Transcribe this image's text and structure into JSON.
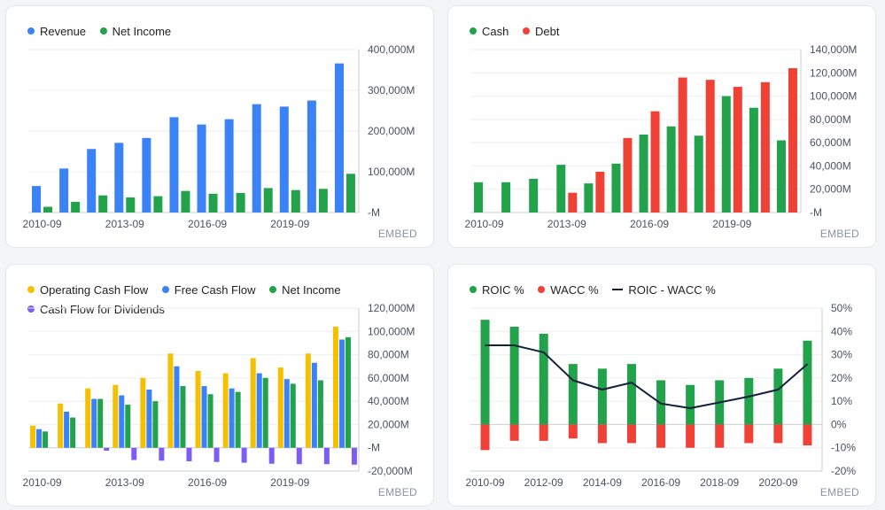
{
  "colors": {
    "blue": "#3b82f6",
    "green": "#22a24a",
    "red": "#ef4136",
    "yellow": "#f5c000",
    "purple": "#7c5cf2",
    "navy": "#14213d"
  },
  "embed_label": "EMBED",
  "chart_data": [
    {
      "type": "bar",
      "legend": [
        {
          "name": "Revenue",
          "color": "#3b82f6",
          "marker": "dot"
        },
        {
          "name": "Net Income",
          "color": "#22a24a",
          "marker": "dot"
        }
      ],
      "categories": [
        "2010-09",
        "2011-09",
        "2012-09",
        "2013-09",
        "2014-09",
        "2015-09",
        "2016-09",
        "2017-09",
        "2018-09",
        "2019-09",
        "2020-09",
        "2021-09"
      ],
      "x_tick_labels": [
        "2010-09",
        "2013-09",
        "2016-09",
        "2019-09"
      ],
      "y_tick_labels": [
        "-M",
        "100,000M",
        "200,000M",
        "300,000M",
        "400,000M"
      ],
      "ylim": [
        0,
        400000
      ],
      "yticks": [
        0,
        100000,
        200000,
        300000,
        400000
      ],
      "series": [
        {
          "name": "Revenue",
          "color": "#3b82f6",
          "values": [
            65000,
            108000,
            156000,
            171000,
            183000,
            234000,
            216000,
            229000,
            266000,
            260000,
            275000,
            366000
          ]
        },
        {
          "name": "Net Income",
          "color": "#22a24a",
          "values": [
            14000,
            26000,
            42000,
            37000,
            40000,
            53000,
            46000,
            48000,
            60000,
            55000,
            58000,
            95000
          ]
        }
      ]
    },
    {
      "type": "bar",
      "legend": [
        {
          "name": "Cash",
          "color": "#22a24a",
          "marker": "dot"
        },
        {
          "name": "Debt",
          "color": "#ef4136",
          "marker": "dot"
        }
      ],
      "categories": [
        "2010-09",
        "2011-09",
        "2012-09",
        "2013-09",
        "2014-09",
        "2015-09",
        "2016-09",
        "2017-09",
        "2018-09",
        "2019-09",
        "2020-09",
        "2021-09"
      ],
      "x_tick_labels": [
        "2010-09",
        "2013-09",
        "2016-09",
        "2019-09"
      ],
      "y_tick_labels": [
        "-M",
        "20,000M",
        "40,000M",
        "60,000M",
        "80,000M",
        "100,000M",
        "120,000M",
        "140,000M"
      ],
      "ylim": [
        0,
        140000
      ],
      "yticks": [
        0,
        20000,
        40000,
        60000,
        80000,
        100000,
        120000,
        140000
      ],
      "series": [
        {
          "name": "Cash",
          "color": "#22a24a",
          "values": [
            26000,
            26000,
            29000,
            41000,
            25000,
            42000,
            67000,
            74000,
            66000,
            100000,
            90000,
            62000
          ]
        },
        {
          "name": "Debt",
          "color": "#ef4136",
          "values": [
            0,
            0,
            0,
            17000,
            35000,
            64000,
            87000,
            116000,
            114000,
            108000,
            112000,
            124000
          ]
        }
      ]
    },
    {
      "type": "bar",
      "legend": [
        {
          "name": "Operating Cash Flow",
          "color": "#f5c000",
          "marker": "dot"
        },
        {
          "name": "Free Cash Flow",
          "color": "#3b82f6",
          "marker": "dot"
        },
        {
          "name": "Net Income",
          "color": "#22a24a",
          "marker": "dot"
        },
        {
          "name": "Cash Flow for Dividends",
          "color": "#7c5cf2",
          "marker": "dot"
        }
      ],
      "categories": [
        "2010-09",
        "2011-09",
        "2012-09",
        "2013-09",
        "2014-09",
        "2015-09",
        "2016-09",
        "2017-09",
        "2018-09",
        "2019-09",
        "2020-09",
        "2021-09"
      ],
      "x_tick_labels": [
        "2010-09",
        "2013-09",
        "2016-09",
        "2019-09"
      ],
      "y_tick_labels": [
        "-20,000M",
        "-M",
        "20,000M",
        "40,000M",
        "60,000M",
        "80,000M",
        "100,000M",
        "120,000M"
      ],
      "ylim": [
        -20000,
        120000
      ],
      "yticks": [
        -20000,
        0,
        20000,
        40000,
        60000,
        80000,
        100000,
        120000
      ],
      "series": [
        {
          "name": "Operating Cash Flow",
          "color": "#f5c000",
          "values": [
            19000,
            38000,
            51000,
            54000,
            60000,
            81000,
            66000,
            64000,
            77000,
            69000,
            81000,
            104000
          ]
        },
        {
          "name": "Free Cash Flow",
          "color": "#3b82f6",
          "values": [
            16000,
            31000,
            42000,
            45000,
            50000,
            70000,
            53000,
            51000,
            64000,
            59000,
            73000,
            93000
          ]
        },
        {
          "name": "Net Income",
          "color": "#22a24a",
          "values": [
            14000,
            26000,
            42000,
            37000,
            40000,
            53000,
            46000,
            48000,
            60000,
            55000,
            58000,
            95000
          ]
        },
        {
          "name": "Cash Flow for Dividends",
          "color": "#7c5cf2",
          "values": [
            0,
            0,
            -2500,
            -10500,
            -11100,
            -11600,
            -12200,
            -12800,
            -13700,
            -14100,
            -14100,
            -14500
          ]
        }
      ]
    },
    {
      "type": "bar",
      "legend": [
        {
          "name": "ROIC %",
          "color": "#22a24a",
          "marker": "dot"
        },
        {
          "name": "WACC %",
          "color": "#ef4136",
          "marker": "dot"
        },
        {
          "name": "ROIC - WACC %",
          "color": "#14213d",
          "marker": "line"
        }
      ],
      "categories": [
        "2010-09",
        "2011-09",
        "2012-09",
        "2013-09",
        "2014-09",
        "2015-09",
        "2016-09",
        "2017-09",
        "2018-09",
        "2019-09",
        "2020-09",
        "2021-09"
      ],
      "x_tick_labels": [
        "2010-09",
        "2012-09",
        "2014-09",
        "2016-09",
        "2018-09",
        "2020-09"
      ],
      "y_tick_labels": [
        "-20%",
        "-10%",
        "0%",
        "10%",
        "20%",
        "30%",
        "40%",
        "50%"
      ],
      "ylim": [
        -20,
        50
      ],
      "yticks": [
        -20,
        -10,
        0,
        10,
        20,
        30,
        40,
        50
      ],
      "series": [
        {
          "name": "ROIC %",
          "color": "#22a24a",
          "kind": "bar",
          "values": [
            45,
            42,
            39,
            26,
            24,
            26,
            19,
            17,
            19,
            20,
            24,
            36
          ]
        },
        {
          "name": "WACC %",
          "color": "#ef4136",
          "kind": "bar",
          "values": [
            -11,
            -7,
            -7,
            -6,
            -8,
            -8,
            -10,
            -10,
            -10,
            -8,
            -8,
            -9
          ]
        },
        {
          "name": "ROIC - WACC %",
          "color": "#14213d",
          "kind": "line",
          "values": [
            34,
            34,
            31,
            19,
            15,
            18,
            9,
            7,
            9.5,
            12,
            15,
            26
          ]
        }
      ]
    }
  ]
}
